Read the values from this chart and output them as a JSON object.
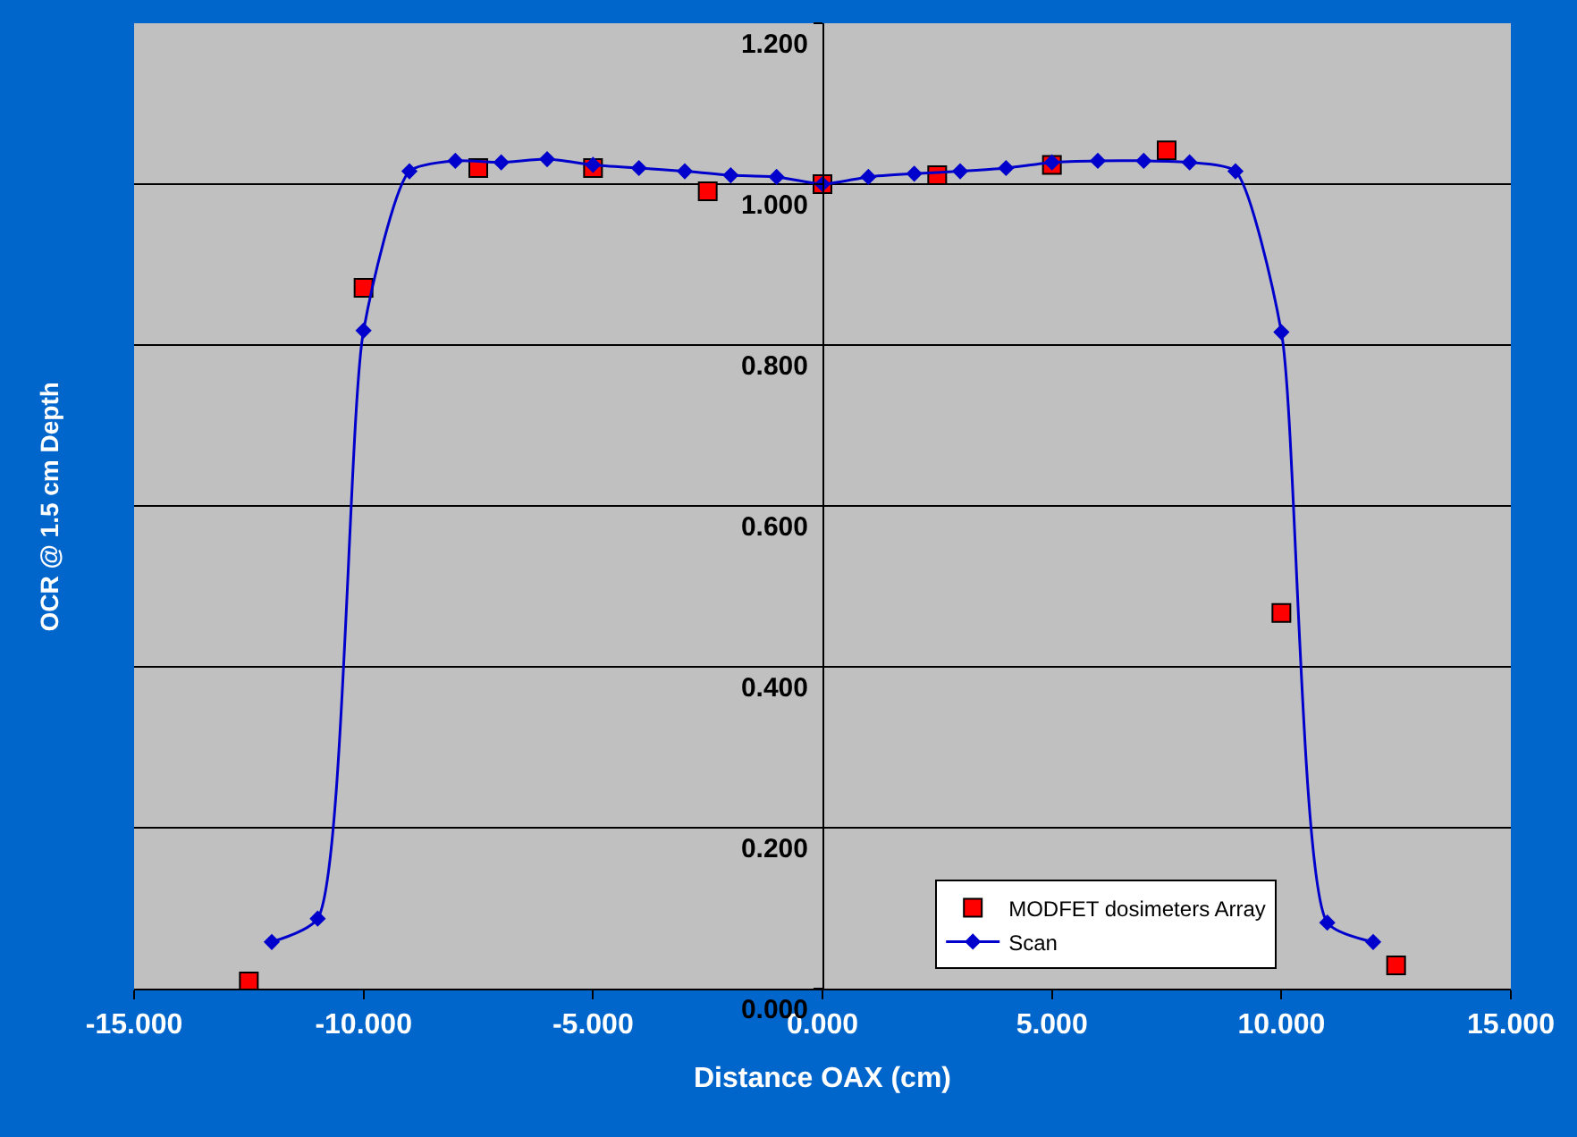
{
  "chart_data": {
    "type": "scatter",
    "xlabel": "Distance OAX (cm)",
    "ylabel": "OCR @ 1.5 cm Depth",
    "xlim": [
      -15,
      15
    ],
    "xticks": [
      {
        "value": -15,
        "label": "-15.000"
      },
      {
        "value": -10,
        "label": "-10.000"
      },
      {
        "value": -5,
        "label": "-5.000"
      },
      {
        "value": 0,
        "label": "0.000"
      },
      {
        "value": 5,
        "label": "5.000"
      },
      {
        "value": 10,
        "label": "10.000"
      },
      {
        "value": 15,
        "label": "15.000"
      }
    ],
    "ylim": [
      0,
      1.2
    ],
    "yticks": [
      {
        "value": 0,
        "label": "0.000"
      },
      {
        "value": 0.2,
        "label": "0.200"
      },
      {
        "value": 0.4,
        "label": "0.400"
      },
      {
        "value": 0.6,
        "label": "0.600"
      },
      {
        "value": 0.8,
        "label": "0.800"
      },
      {
        "value": 1.0,
        "label": "1.000"
      },
      {
        "value": 1.2,
        "label": "1.200"
      }
    ],
    "grid": "y",
    "legend": "bottom right",
    "series": [
      {
        "name": "MODFET dosimeters Array",
        "marker": "square",
        "color": "#ff0000",
        "x": [
          -12.5,
          -10,
          -7.5,
          -5,
          -2.5,
          0,
          2.5,
          5,
          7.5,
          10,
          12.5
        ],
        "values": [
          0.009,
          0.871,
          1.02,
          1.02,
          0.991,
          1.0,
          1.011,
          1.024,
          1.042,
          0.467,
          0.029
        ]
      },
      {
        "name": "Scan",
        "type": "line",
        "marker": "diamond",
        "color": "#0000cc",
        "x": [
          -12,
          -11,
          -10,
          -9,
          -8,
          -7,
          -6,
          -5,
          -4,
          -3,
          -2,
          -1,
          0,
          1,
          2,
          3,
          4,
          5,
          6,
          7,
          8,
          9,
          10,
          11,
          12
        ],
        "values": [
          0.058,
          0.087,
          0.818,
          1.016,
          1.029,
          1.027,
          1.031,
          1.024,
          1.02,
          1.016,
          1.011,
          1.009,
          1.0,
          1.009,
          1.013,
          1.016,
          1.02,
          1.027,
          1.029,
          1.029,
          1.027,
          1.016,
          0.816,
          0.082,
          0.058
        ]
      }
    ]
  }
}
